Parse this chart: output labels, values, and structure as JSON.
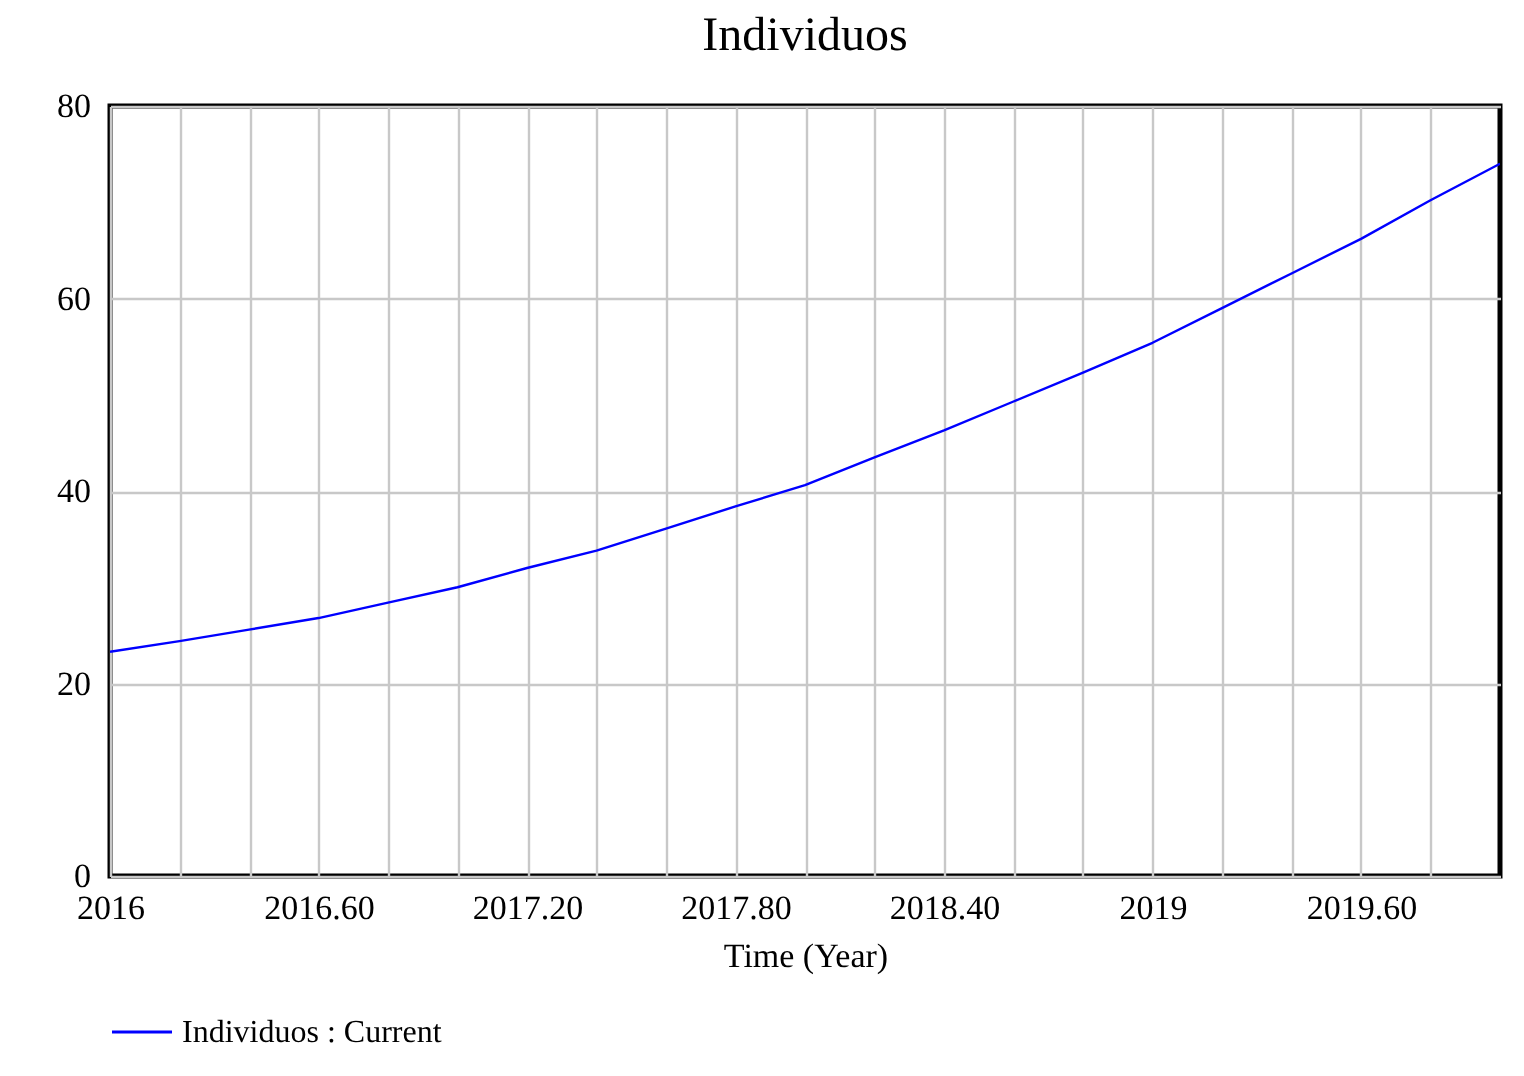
{
  "chart_data": {
    "type": "line",
    "title": "Individuos",
    "xlabel": "Time (Year)",
    "x": [
      2016,
      2016.2,
      2016.4,
      2016.6,
      2016.8,
      2017,
      2017.2,
      2017.4,
      2017.6,
      2017.8,
      2018,
      2018.2,
      2018.4,
      2018.6,
      2018.8,
      2019,
      2019.2,
      2019.4,
      2019.6,
      2019.8,
      2020
    ],
    "series": [
      {
        "name": "Individuos : Current",
        "color": "#0000ff",
        "values": [
          23.3,
          24.4,
          25.6,
          26.8,
          28.4,
          30.0,
          32.0,
          33.8,
          36.1,
          38.4,
          40.6,
          43.5,
          46.3,
          49.3,
          52.3,
          55.4,
          59.0,
          62.6,
          66.2,
          70.2,
          74.0
        ]
      }
    ],
    "xlim": [
      2016,
      2020
    ],
    "xticks": [
      2016,
      {
        "value": 2016.2,
        "label": null
      },
      {
        "value": 2016.4,
        "label": null
      },
      {
        "value": 2016.6,
        "label": "2016.60"
      },
      {
        "value": 2016.8,
        "label": null
      },
      {
        "value": 2017,
        "label": null
      },
      {
        "value": 2017.2,
        "label": "2017.20"
      },
      {
        "value": 2017.4,
        "label": null
      },
      {
        "value": 2017.6,
        "label": null
      },
      {
        "value": 2017.8,
        "label": "2017.80"
      },
      {
        "value": 2018,
        "label": null
      },
      {
        "value": 2018.2,
        "label": null
      },
      {
        "value": 2018.4,
        "label": "2018.40"
      },
      {
        "value": 2018.6,
        "label": null
      },
      {
        "value": 2018.8,
        "label": null
      },
      2019,
      {
        "value": 2019.2,
        "label": null
      },
      {
        "value": 2019.4,
        "label": null
      },
      {
        "value": 2019.6,
        "label": "2019.60"
      },
      {
        "value": 2019.8,
        "label": null
      }
    ],
    "ylim": [
      0,
      80
    ],
    "yticks": [
      0,
      20,
      40,
      60,
      80
    ],
    "grid": true,
    "legend": "bottom",
    "marker": "none",
    "line_style": "solid"
  }
}
